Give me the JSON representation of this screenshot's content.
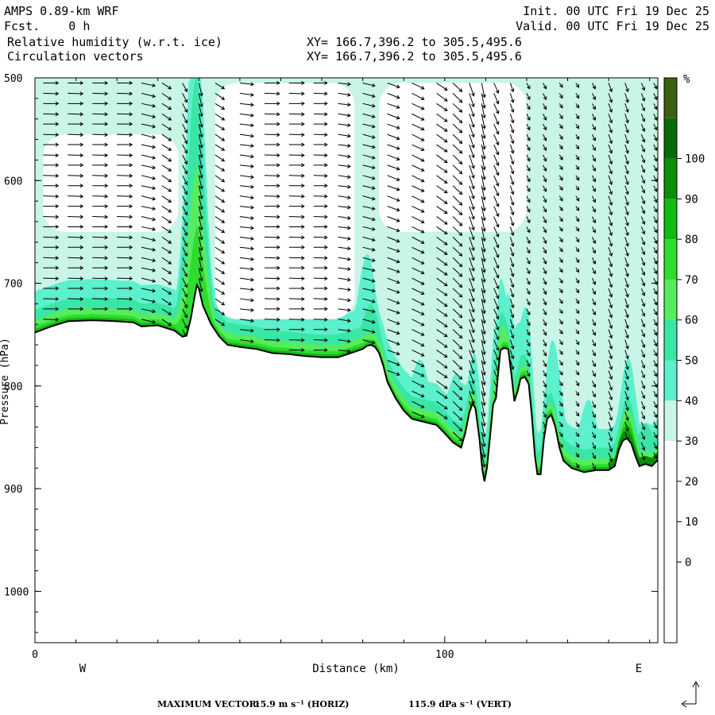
{
  "header": {
    "model": "AMPS 0.89-km WRF",
    "fcst": "Fcst.    0 h",
    "field1": "Relative humidity (w.r.t. ice)",
    "field2": "Circulation vectors",
    "xy1": "XY= 166.7,396.2 to 305.5,495.6",
    "xy2": "XY= 166.7,396.2 to 305.5,495.6",
    "init": "Init. 00 UTC Fri 19 Dec 25",
    "valid": "Valid. 00 UTC Fri 19 Dec 25"
  },
  "footer": {
    "max_label": "MAXIMUM VECTOR:",
    "horiz": "15.9 m s⁻¹ (HORIZ)",
    "vert": "115.9 dPa s⁻¹ (VERT)"
  },
  "chart_data": {
    "type": "heatmap",
    "xlabel": "Distance (km)",
    "ylabel": "Pressure (hPa)",
    "xlim": [
      0,
      152
    ],
    "ylim": [
      1050,
      500
    ],
    "x_ticks": [
      0,
      100
    ],
    "y_ticks": [
      500,
      600,
      700,
      800,
      900,
      1000
    ],
    "side_labels": {
      "west": "W",
      "east": "E"
    },
    "colorbar": {
      "unit": "%",
      "tick_labels": [
        0,
        10,
        20,
        30,
        40,
        50,
        60,
        70,
        80,
        90,
        100
      ],
      "levels": [
        30,
        40,
        50,
        60,
        70,
        80,
        90,
        100
      ],
      "colors": [
        "#ffffff",
        "#ffffff",
        "#ffffff",
        "#ffffff",
        "#ffffff",
        "#c8f5e6",
        "#5cf0cc",
        "#3ae6a6",
        "#55ec5e",
        "#2edd2e",
        "#11bb11",
        "#0a8f0a",
        "#0a6a0a",
        "#3d6010"
      ]
    },
    "terrain_pressure": [
      [
        0,
        748
      ],
      [
        4,
        742
      ],
      [
        8,
        737
      ],
      [
        14,
        736
      ],
      [
        20,
        737
      ],
      [
        24,
        738
      ],
      [
        26,
        742
      ],
      [
        30,
        741
      ],
      [
        34,
        746
      ],
      [
        36,
        752
      ],
      [
        37,
        751
      ],
      [
        38,
        735
      ],
      [
        39,
        712
      ],
      [
        39.5,
        702
      ],
      [
        40,
        705
      ],
      [
        41,
        722
      ],
      [
        43,
        740
      ],
      [
        45,
        752
      ],
      [
        47,
        760
      ],
      [
        50,
        762
      ],
      [
        54,
        764
      ],
      [
        58,
        768
      ],
      [
        62,
        769
      ],
      [
        66,
        771
      ],
      [
        70,
        772
      ],
      [
        74,
        772
      ],
      [
        77,
        768
      ],
      [
        80,
        764
      ],
      [
        81,
        761
      ],
      [
        82,
        760
      ],
      [
        83,
        762
      ],
      [
        84,
        768
      ],
      [
        85,
        780
      ],
      [
        86,
        796
      ],
      [
        88,
        812
      ],
      [
        90,
        824
      ],
      [
        92,
        832
      ],
      [
        95,
        835
      ],
      [
        98,
        838
      ],
      [
        100,
        846
      ],
      [
        102,
        855
      ],
      [
        104,
        860
      ],
      [
        105,
        846
      ],
      [
        106,
        826
      ],
      [
        106.8,
        817
      ],
      [
        107.5,
        822
      ],
      [
        108.5,
        852
      ],
      [
        109.2,
        882
      ],
      [
        109.7,
        893
      ],
      [
        110.3,
        880
      ],
      [
        111,
        852
      ],
      [
        111.8,
        818
      ],
      [
        112.5,
        812
      ],
      [
        113,
        790
      ],
      [
        113.6,
        765
      ],
      [
        114.5,
        763
      ],
      [
        115.5,
        764
      ],
      [
        116.3,
        790
      ],
      [
        117,
        815
      ],
      [
        117.8,
        805
      ],
      [
        118.5,
        793
      ],
      [
        119.5,
        791
      ],
      [
        120.5,
        798
      ],
      [
        121.2,
        826
      ],
      [
        122,
        868
      ],
      [
        122.6,
        886
      ],
      [
        123.4,
        886
      ],
      [
        124.2,
        852
      ],
      [
        125,
        832
      ],
      [
        126,
        828
      ],
      [
        127,
        840
      ],
      [
        128,
        860
      ],
      [
        129,
        873
      ],
      [
        131,
        880
      ],
      [
        134,
        884
      ],
      [
        137,
        882
      ],
      [
        140,
        882
      ],
      [
        141.5,
        878
      ],
      [
        142.5,
        862
      ],
      [
        143.5,
        853
      ],
      [
        144.5,
        851
      ],
      [
        145.5,
        856
      ],
      [
        146.5,
        868
      ],
      [
        147.5,
        878
      ],
      [
        149,
        876
      ],
      [
        150.5,
        878
      ],
      [
        152,
        872
      ]
    ],
    "rh_bands": [
      {
        "level": 30,
        "base_offset": 999,
        "plumes": [
          [
            10,
            230
          ],
          [
            38,
            200
          ],
          [
            80,
            120
          ],
          [
            92,
            110
          ],
          [
            103,
            150
          ],
          [
            108,
            90
          ],
          [
            113,
            130
          ],
          [
            118,
            160
          ],
          [
            122,
            150
          ],
          [
            126,
            160
          ],
          [
            134,
            150
          ],
          [
            145,
            170
          ],
          [
            150,
            170
          ]
        ],
        "topcap": true
      },
      {
        "level": 40,
        "base_offset": 40,
        "plumes": [
          [
            39,
            300
          ],
          [
            81,
            90
          ],
          [
            94,
            60
          ],
          [
            103,
            70
          ],
          [
            108,
            55
          ],
          [
            113,
            75
          ],
          [
            117,
            70
          ],
          [
            120,
            70
          ],
          [
            127,
            80
          ],
          [
            135,
            70
          ],
          [
            145,
            80
          ]
        ]
      },
      {
        "level": 50,
        "base_offset": 22,
        "plumes": [
          [
            39,
            210
          ],
          [
            82,
            40
          ],
          [
            113,
            40
          ],
          [
            145,
            40
          ],
          [
            149,
            40
          ]
        ]
      },
      {
        "level": 60,
        "base_offset": 12,
        "plumes": [
          [
            39,
            120
          ],
          [
            113,
            25
          ],
          [
            145,
            30
          ]
        ]
      },
      {
        "level": 70,
        "base_offset": 6,
        "plumes": [
          [
            39,
            60
          ],
          [
            145,
            20
          ]
        ]
      },
      {
        "level": 80,
        "base_offset": 3,
        "plumes": [
          [
            145,
            14
          ]
        ]
      }
    ],
    "moist_core_km": [
      [
        140,
        152
      ]
    ],
    "dry_regions": [
      {
        "name": "upper-west",
        "x": [
          2,
          35
        ],
        "p": [
          555,
          650
        ]
      },
      {
        "name": "mid-gap",
        "x": [
          44,
          78
        ],
        "p": [
          505,
          735
        ]
      },
      {
        "name": "upper-east",
        "x": [
          84,
          120
        ],
        "p": [
          505,
          650
        ]
      }
    ],
    "wind": {
      "rows_p": [
        505,
        515,
        525,
        535,
        545,
        555,
        565,
        575,
        585,
        595,
        605,
        615,
        625,
        635,
        645,
        655,
        665,
        675,
        685,
        695,
        705,
        715,
        725,
        735,
        745,
        755,
        765,
        775,
        785,
        795,
        805,
        815,
        825,
        835,
        845,
        855,
        865,
        875
      ],
      "cols_km": [
        2,
        8,
        14,
        20,
        26,
        31,
        36,
        40,
        44,
        50,
        56,
        62,
        68,
        74,
        80,
        86,
        92,
        98,
        102,
        106,
        109,
        112,
        116,
        120,
        124,
        128,
        132,
        136,
        140,
        144,
        148,
        151
      ],
      "u_ms": [
        10,
        10,
        10,
        10,
        9,
        6,
        3,
        2,
        6,
        9,
        10,
        10,
        9,
        8,
        8,
        8,
        8,
        7,
        6,
        3,
        2,
        3,
        2,
        2,
        2,
        2,
        2,
        2,
        2,
        2,
        2,
        2
      ],
      "omega_dpa": [
        0,
        0,
        0,
        0,
        20,
        40,
        60,
        90,
        40,
        10,
        0,
        0,
        0,
        10,
        20,
        30,
        40,
        50,
        60,
        90,
        100,
        70,
        60,
        40,
        40,
        30,
        30,
        40,
        60,
        60,
        50,
        40
      ]
    }
  }
}
